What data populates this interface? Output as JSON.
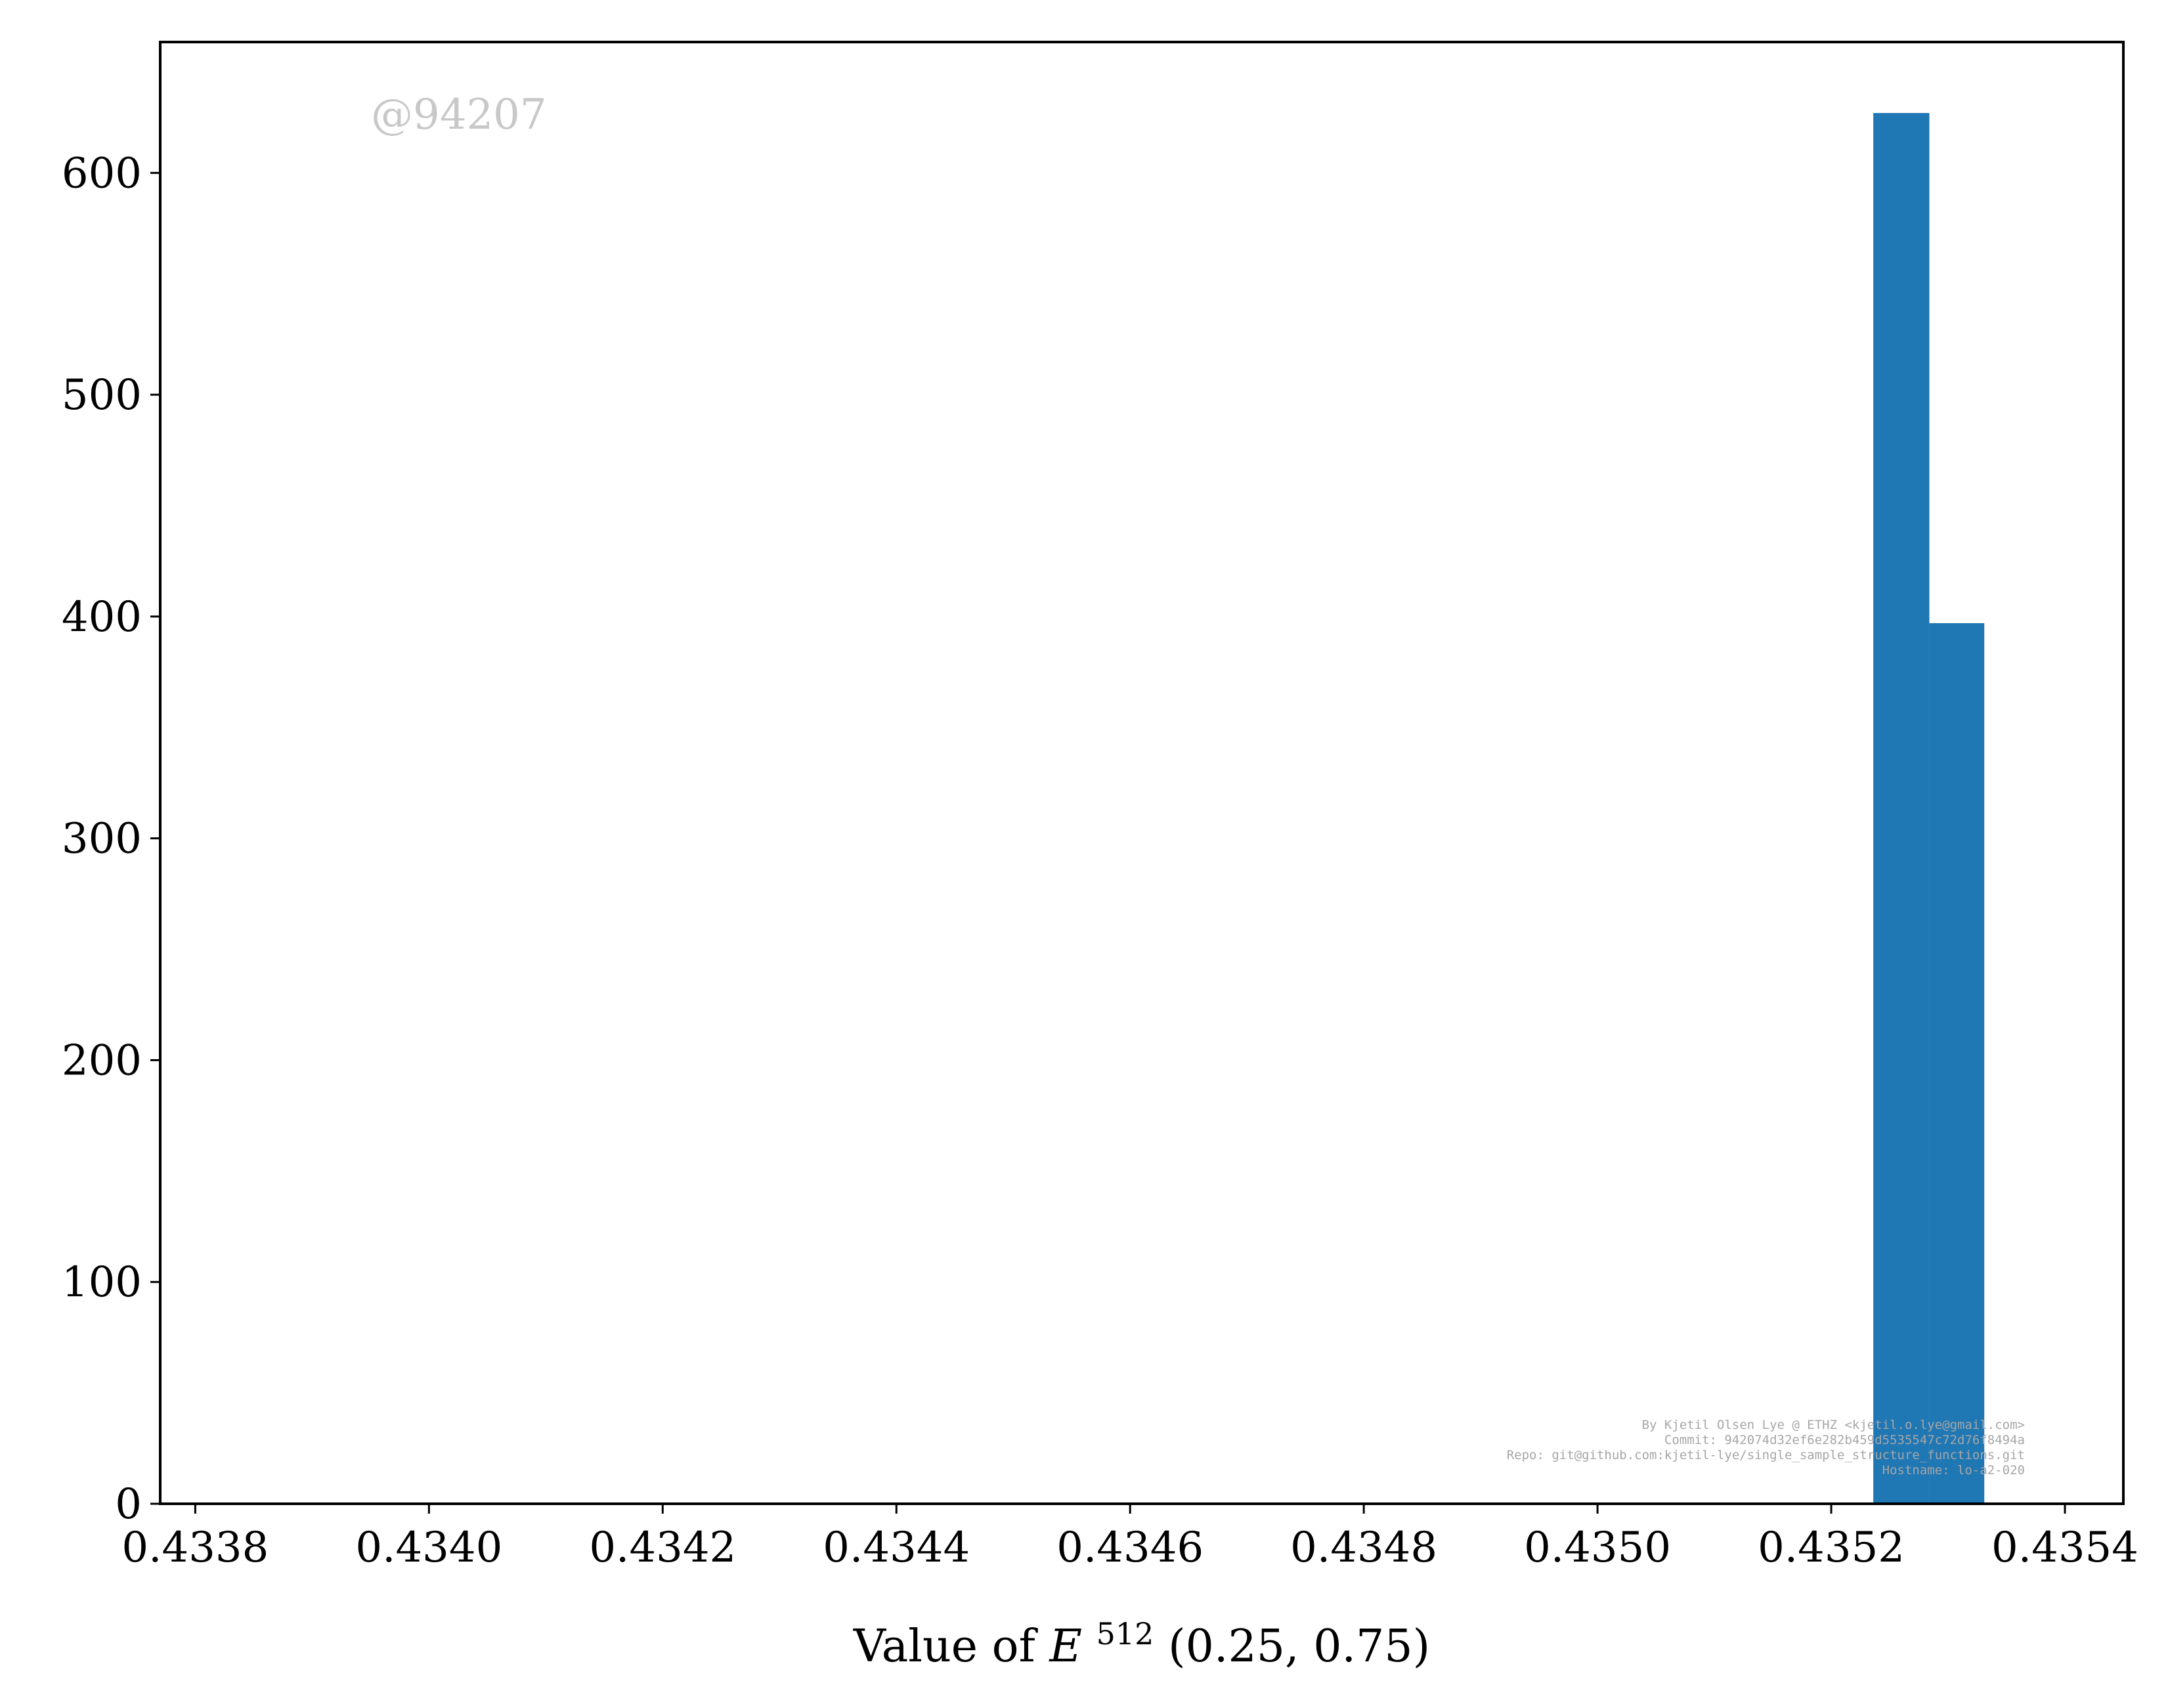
{
  "chart_data": {
    "type": "bar",
    "xlabel_prefix": "Value of ",
    "xlabel_var": "E",
    "xlabel_sup": "512",
    "xlabel_suffix": "(0.25, 0.75)",
    "xlim": [
      0.43377,
      0.43545
    ],
    "ylim": [
      0,
      659
    ],
    "x_ticks": [
      0.4338,
      0.434,
      0.4342,
      0.4344,
      0.4346,
      0.4348,
      0.435,
      0.4352,
      0.4354
    ],
    "x_tick_labels": [
      "0.4338",
      "0.4340",
      "0.4342",
      "0.4344",
      "0.4346",
      "0.4348",
      "0.4350",
      "0.4352",
      "0.4354"
    ],
    "y_ticks": [
      0,
      100,
      200,
      300,
      400,
      500,
      600
    ],
    "y_tick_labels": [
      "0",
      "100",
      "200",
      "300",
      "400",
      "500",
      "600"
    ],
    "bins": [
      {
        "x0": 0.435236,
        "x1": 0.435284,
        "count": 627
      },
      {
        "x0": 0.435284,
        "x1": 0.435331,
        "count": 397
      }
    ],
    "bar_color": "#1f77b4",
    "grid": false,
    "watermark": "@94207",
    "credits": [
      "By Kjetil Olsen Lye @ ETHZ <kjetil.o.lye@gmail.com>",
      "Commit: 942074d32ef6e282b459d5535547c72d76f8494a",
      "Repo: git@github.com:kjetil-lye/single_sample_structure_functions.git",
      "Hostname: lo-a2-020"
    ]
  }
}
